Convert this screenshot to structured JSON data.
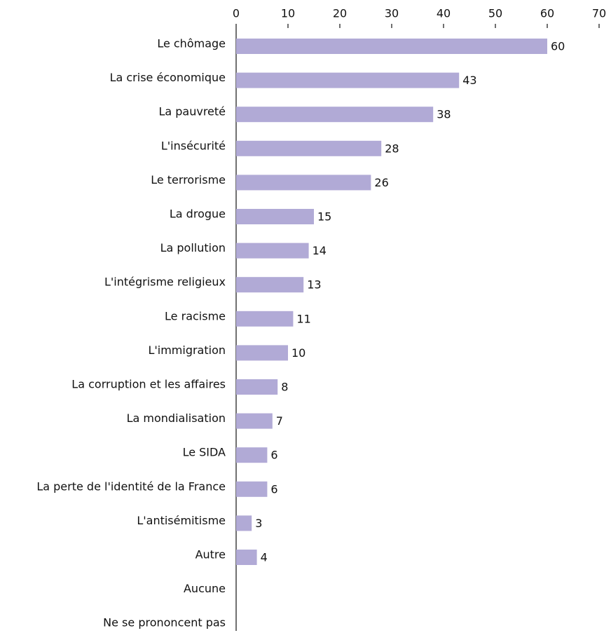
{
  "chart_data": {
    "type": "bar",
    "categories": [
      "Le chômage",
      "La crise économique",
      "La pauvreté",
      "L'insécurité",
      "Le terrorisme",
      "La drogue",
      "La pollution",
      "L'intégrisme religieux",
      "Le racisme",
      "L'immigration",
      "La corruption et les affaires",
      "La mondialisation",
      "Le SIDA",
      "La perte de l'identité de la France",
      "L'antisémitisme",
      "Autre",
      "Aucune",
      "Ne se prononcent pas"
    ],
    "values": [
      60,
      43,
      38,
      28,
      26,
      15,
      14,
      13,
      11,
      10,
      8,
      7,
      6,
      6,
      3,
      4,
      null,
      null
    ],
    "color": "#b1aad6",
    "xlim": [
      0,
      70
    ],
    "xticks": [
      0,
      10,
      20,
      30,
      40,
      50,
      60,
      70
    ]
  }
}
